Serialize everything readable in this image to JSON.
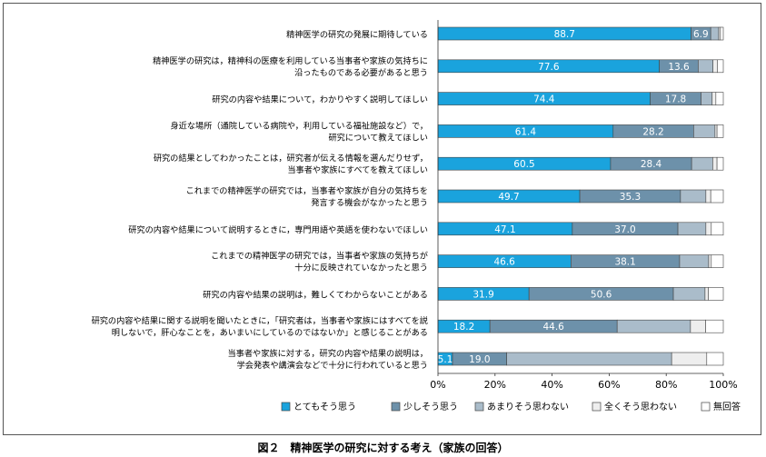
{
  "caption": "図２　精神医学の研究に対する考え（家族の回答）",
  "colors": {
    "s1": "#1aa3dd",
    "s2": "#6d91aa",
    "s3": "#aabcca",
    "s4": "#eeeeee",
    "s5": "#ffffff",
    "edge": "#444444"
  },
  "chart_data": {
    "type": "bar",
    "orientation": "horizontal",
    "stacked": true,
    "categories": [
      [
        "精神医学の研究の発展に期待している"
      ],
      [
        "精神医学の研究は，精神科の医療を利用している当事者や家族の気持ちに",
        "沿ったものである必要があると思う"
      ],
      [
        "研究の内容や結果について，わかりやすく説明してほしい"
      ],
      [
        "身近な場所（通院している病院や，利用している福祉施設など）で，",
        "研究について教えてほしい"
      ],
      [
        "研究の結果としてわかったことは，研究者が伝える情報を選んだりせず，",
        "当事者や家族にすべてを教えてほしい"
      ],
      [
        "これまでの精神医学の研究では，当事者や家族が自分の気持ちを",
        "発言する機会がなかったと思う"
      ],
      [
        "研究の内容や結果について説明するときに，専門用語や英語を使わないでほしい"
      ],
      [
        "これまでの精神医学の研究では，当事者や家族の気持ちが",
        "十分に反映されていなかったと思う"
      ],
      [
        "研究の内容や結果の説明は，難しくてわからないことがある"
      ],
      [
        "研究の内容や結果に関する説明を聞いたときに，「研究者は，当事者や家族にはすべてを説",
        "明しないで，肝心なことを，あいまいにしているのではないか」と感じることがある"
      ],
      [
        "当事者や家族に対する，研究の内容や結果の説明は，",
        "学会発表や講演会などで十分に行われていると思う"
      ]
    ],
    "series": [
      {
        "name": "とてもそう思う",
        "values": [
          88.7,
          77.6,
          74.4,
          61.4,
          60.5,
          49.7,
          47.1,
          46.6,
          31.9,
          18.2,
          5.1
        ]
      },
      {
        "name": "少しそう思う",
        "values": [
          6.9,
          13.6,
          17.8,
          28.2,
          28.4,
          35.3,
          37.0,
          38.1,
          50.6,
          44.6,
          19.0
        ]
      },
      {
        "name": "あまりそう思わない",
        "values": [
          2.8,
          5.2,
          3.9,
          7.5,
          7.4,
          8.9,
          9.8,
          10.2,
          11.1,
          25.7,
          57.8
        ]
      },
      {
        "name": "全くそう思わない",
        "values": [
          0.6,
          1.5,
          1.3,
          0.7,
          1.5,
          1.7,
          1.9,
          0.9,
          1.2,
          5.3,
          12.3
        ]
      },
      {
        "name": "無回答",
        "values": [
          1.0,
          2.1,
          2.6,
          2.2,
          2.2,
          4.4,
          4.2,
          4.2,
          5.2,
          6.2,
          5.8
        ]
      }
    ],
    "value_labels_on_series": [
      "とてもそう思う",
      "少しそう思う"
    ],
    "min_label_value": 5.0,
    "xlim": [
      0,
      100
    ],
    "xticks": [
      "0%",
      "20%",
      "40%",
      "60%",
      "80%",
      "100%"
    ],
    "legend_position": "bottom",
    "grid": false
  }
}
